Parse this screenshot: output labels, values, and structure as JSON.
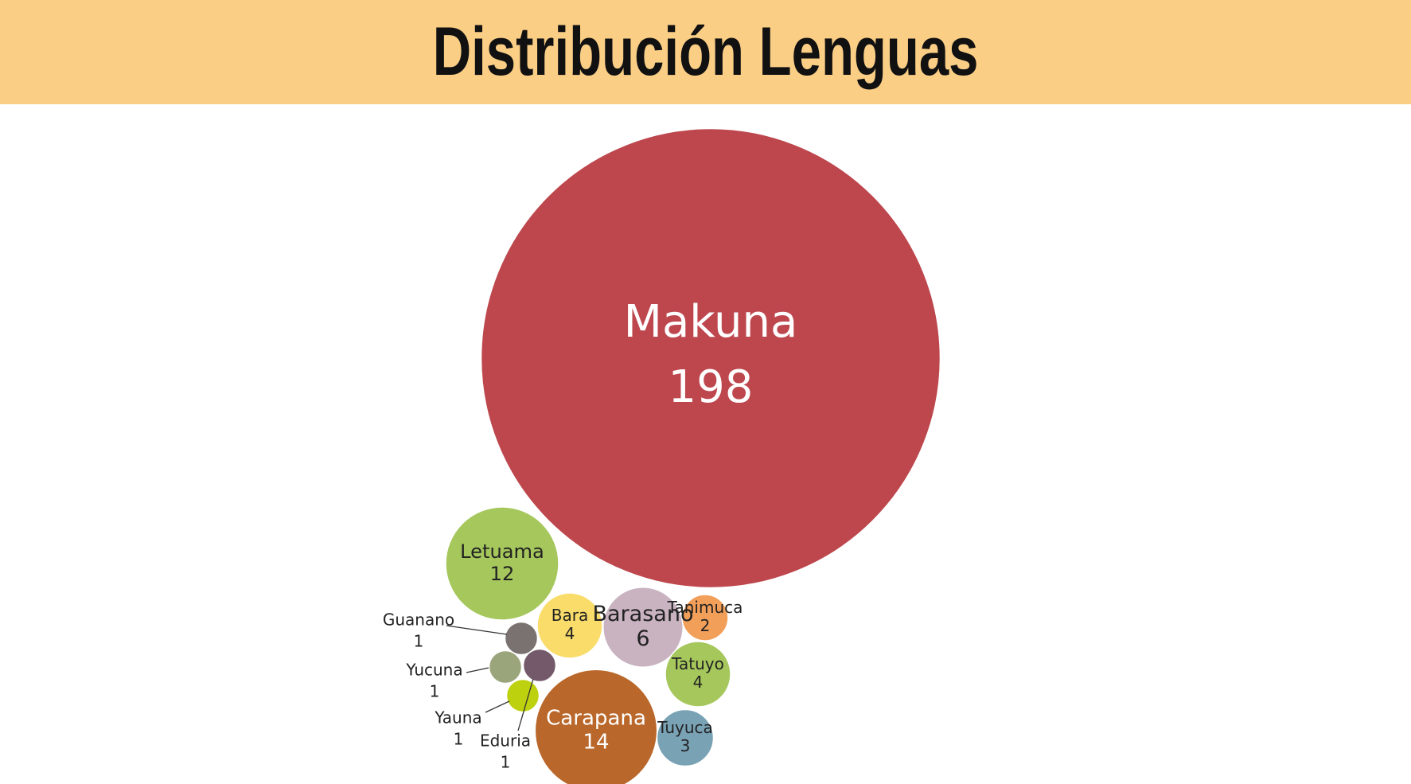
{
  "chart_data": {
    "type": "bubble",
    "title": "Distribución Lenguas",
    "bubbles": [
      {
        "name": "Makuna",
        "value": 198,
        "color": "#bd474d",
        "label_color": "#ffffff",
        "label_position": "inside"
      },
      {
        "name": "Carapana",
        "value": 14,
        "color": "#b9672a",
        "label_color": "#ffffff",
        "label_position": "inside"
      },
      {
        "name": "Letuama",
        "value": 12,
        "color": "#a5c75c",
        "label_color": "#222222",
        "label_position": "inside"
      },
      {
        "name": "Barasano",
        "value": 6,
        "color": "#c9b3c1",
        "label_color": "#222222",
        "label_position": "inside"
      },
      {
        "name": "Bara",
        "value": 4,
        "color": "#f9dc6a",
        "label_color": "#222222",
        "label_position": "inside"
      },
      {
        "name": "Tatuyo",
        "value": 4,
        "color": "#a5c75c",
        "label_color": "#222222",
        "label_position": "inside"
      },
      {
        "name": "Tuyuca",
        "value": 3,
        "color": "#79a2b5",
        "label_color": "#222222",
        "label_position": "inside"
      },
      {
        "name": "Tanimuca",
        "value": 2,
        "color": "#f29f5a",
        "label_color": "#222222",
        "label_position": "inside"
      },
      {
        "name": "Guanano",
        "value": 1,
        "color": "#7a7270",
        "label_color": "#222222",
        "label_position": "callout"
      },
      {
        "name": "Yucuna",
        "value": 1,
        "color": "#9ba57c",
        "label_color": "#222222",
        "label_position": "callout"
      },
      {
        "name": "Yauna",
        "value": 1,
        "color": "#bdd10f",
        "label_color": "#222222",
        "label_position": "callout"
      },
      {
        "name": "Eduria",
        "value": 1,
        "color": "#74596a",
        "label_color": "#222222",
        "label_position": "callout"
      }
    ]
  }
}
